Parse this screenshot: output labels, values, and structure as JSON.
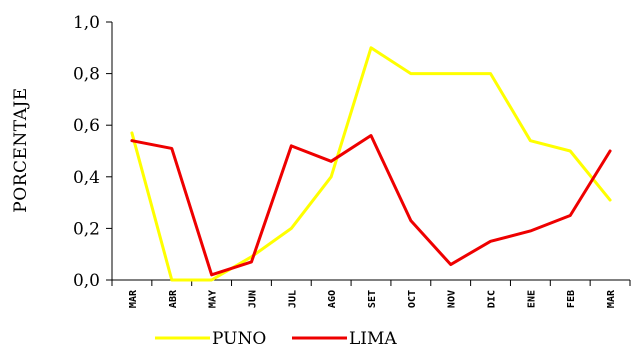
{
  "chart_data": {
    "type": "line",
    "title": "",
    "xlabel": "",
    "ylabel": "PORCENTAJE",
    "ylim": [
      0,
      1.0
    ],
    "yticks": [
      "0,0",
      "0,2",
      "0,4",
      "0,6",
      "0,8",
      "1,0"
    ],
    "ytick_values": [
      0,
      0.2,
      0.4,
      0.6,
      0.8,
      1.0
    ],
    "categories": [
      "MAR",
      "ABR",
      "MAY",
      "JUN",
      "JUL",
      "AGO",
      "SET",
      "OCT",
      "NOV",
      "DIC",
      "ENE",
      "FEB",
      "MAR"
    ],
    "grid": false,
    "legend_position": "bottom",
    "series": [
      {
        "name": "PUNO",
        "color": "#ffff00",
        "values": [
          0.57,
          0.0,
          0.0,
          0.09,
          0.2,
          0.4,
          0.9,
          0.8,
          0.8,
          0.8,
          0.54,
          0.5,
          0.31
        ]
      },
      {
        "name": "LIMA",
        "color": "#ee0000",
        "values": [
          0.54,
          0.51,
          0.02,
          0.07,
          0.52,
          0.46,
          0.56,
          0.23,
          0.06,
          0.15,
          0.19,
          0.25,
          0.5
        ]
      }
    ]
  }
}
